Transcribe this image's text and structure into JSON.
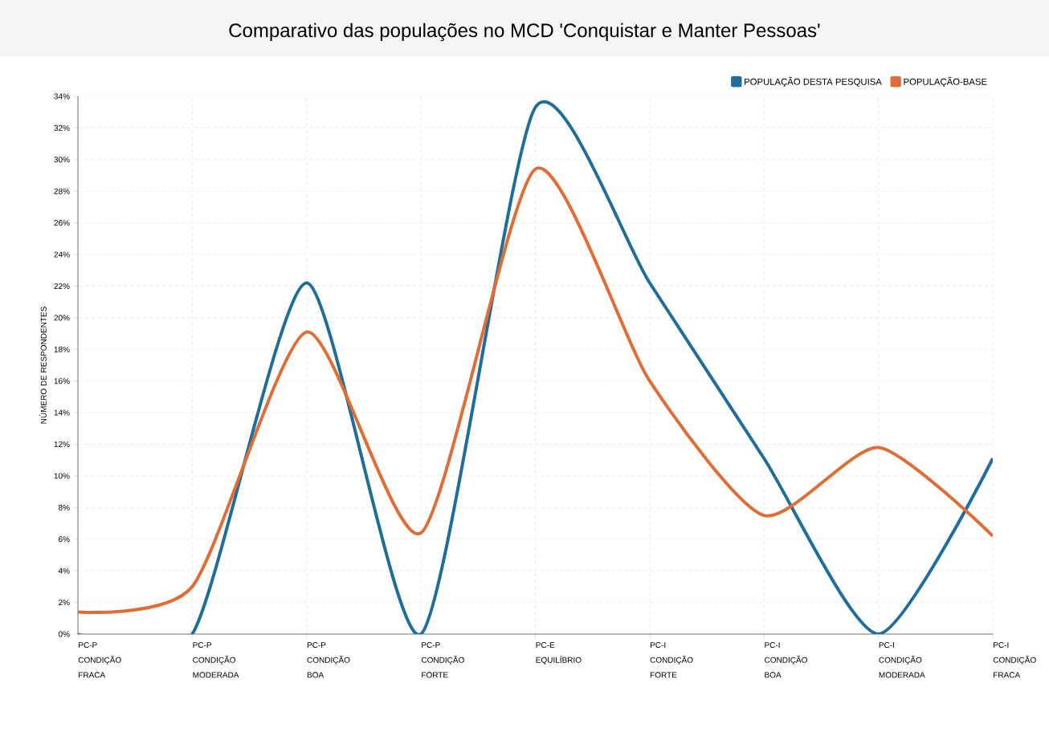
{
  "chart_data": {
    "type": "line",
    "title": "Comparativo das populações no MCD 'Conquistar e Manter Pessoas'",
    "ylabel": "NÚMERO DE RESPONDENTES",
    "categories": [
      "PC-P CONDIÇÃO FRACA",
      "PC-P CONDIÇÃO MODERADA",
      "PC-P CONDIÇÃO BOA",
      "PC-P CONDIÇÃO FORTE",
      "PC-E EQUILÍBRIO",
      "PC-I CONDIÇÃO FORTE",
      "PC-I CONDIÇÃO BOA",
      "PC-I CONDIÇÃO MODERADA",
      "PC-I CONDIÇÃO FRACA"
    ],
    "series": [
      {
        "name": "POPULAÇÃO DESTA PESQUISA",
        "color": "#1f6d9a",
        "values": [
          0,
          0,
          22.2,
          0,
          33.3,
          22.2,
          11.1,
          0,
          11.1
        ]
      },
      {
        "name": "POPULAÇÃO-BASE",
        "color": "#e06c36",
        "values": [
          1.4,
          3.0,
          19.1,
          6.4,
          29.4,
          16.0,
          7.5,
          11.8,
          6.2
        ]
      }
    ],
    "ylim": [
      0,
      34
    ],
    "yticks": [
      {
        "value": 0,
        "label": "0%"
      },
      {
        "value": 2,
        "label": "2%"
      },
      {
        "value": 4,
        "label": "4%"
      },
      {
        "value": 6,
        "label": "6%"
      },
      {
        "value": 8,
        "label": "8%"
      },
      {
        "value": 10,
        "label": "10%"
      },
      {
        "value": 12,
        "label": "12%"
      },
      {
        "value": 14,
        "label": "14%"
      },
      {
        "value": 16,
        "label": "16%"
      },
      {
        "value": 18,
        "label": "18%"
      },
      {
        "value": 20,
        "label": "20%"
      },
      {
        "value": 22,
        "label": "22%"
      },
      {
        "value": 24,
        "label": "24%"
      },
      {
        "value": 26,
        "label": "26%"
      },
      {
        "value": 28,
        "label": "28%"
      },
      {
        "value": 30,
        "label": "30%"
      },
      {
        "value": 32,
        "label": "32%"
      },
      {
        "value": 34,
        "label": "34%"
      }
    ],
    "grid": true,
    "legend": "top right",
    "marker": "none",
    "line_style": "solid"
  }
}
